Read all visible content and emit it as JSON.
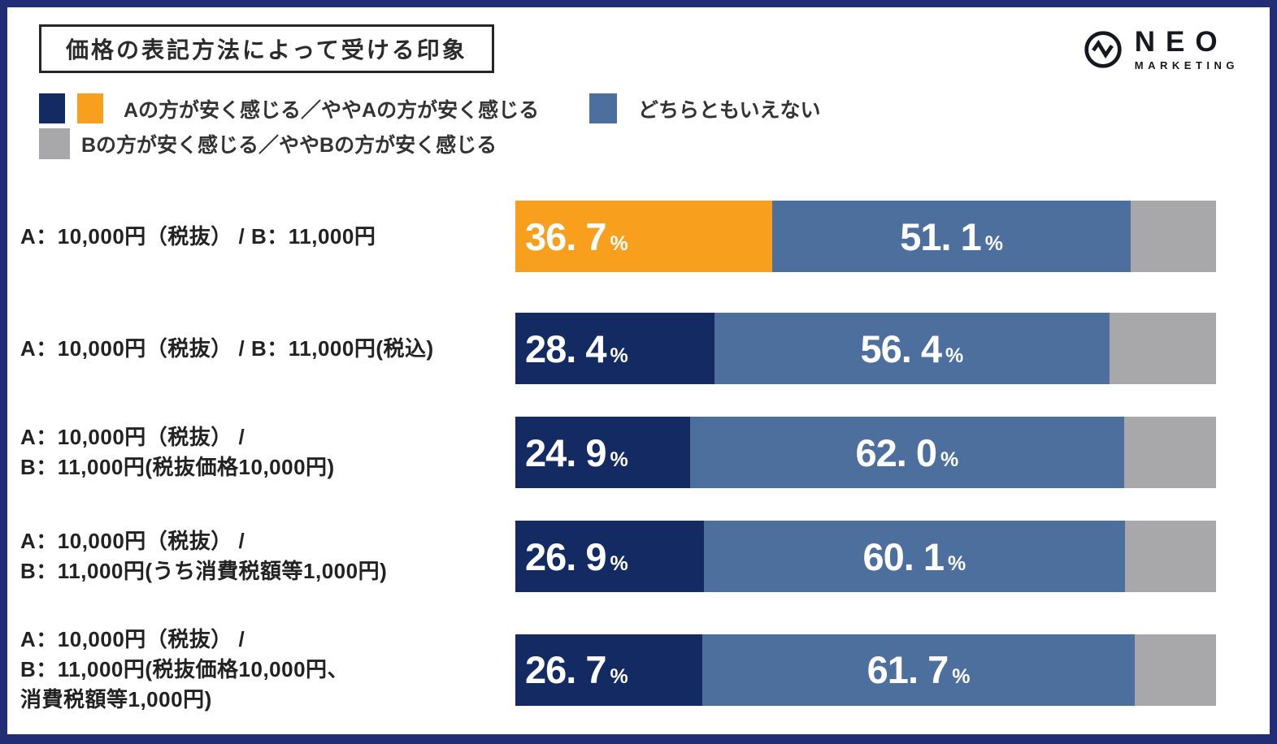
{
  "title": "価格の表記方法によって受ける印象",
  "brand": {
    "name": "NEO",
    "subname": "MARKETING",
    "logo_icon": "pulse-circle-icon"
  },
  "legend": {
    "a_label": "Aの方が安く感じる／ややAの方が安く感じる",
    "neutral_label": "どちらともいえない",
    "b_label": "Bの方が安く感じる／ややBの方が安く感じる"
  },
  "colors": {
    "navy": "#132a63",
    "orange": "#f8a01d",
    "steel": "#4d6f9e",
    "gray": "#a8a7a9",
    "frame": "#212d74",
    "text": "#222222"
  },
  "chart_data": {
    "type": "bar",
    "orientation": "horizontal",
    "stacked": true,
    "unit": "%",
    "xlim": [
      0,
      100
    ],
    "title": "価格の表記方法によって受ける印象",
    "legend_position": "top",
    "grid": false,
    "categories": [
      "A：10,000円（税抜） / B：11,000円",
      "A：10,000円（税抜） / B：11,000円(税込)",
      "A：10,000円（税抜） / B：11,000円(税抜価格10,000円)",
      "A：10,000円（税抜） / B：11,000円(うち消費税額等1,000円)",
      "A：10,000円（税抜） / B：11,000円(税抜価格10,000円、消費税額等1,000円)"
    ],
    "series": [
      {
        "name": "Aの方が安く感じる／ややAの方が安く感じる",
        "values": [
          36.7,
          28.4,
          24.9,
          26.9,
          26.7
        ],
        "segment_colors": [
          "orange",
          "navy",
          "navy",
          "navy",
          "navy"
        ],
        "value_labels_shown": true
      },
      {
        "name": "どちらともいえない",
        "values": [
          51.1,
          56.4,
          62.0,
          60.1,
          61.7
        ],
        "segment_colors": [
          "steel",
          "steel",
          "steel",
          "steel",
          "steel"
        ],
        "value_labels_shown": true
      },
      {
        "name": "Bの方が安く感じる／ややBの方が安く感じる",
        "values": [
          12.2,
          15.2,
          13.1,
          13.0,
          11.6
        ],
        "segment_colors": [
          "gray",
          "gray",
          "gray",
          "gray",
          "gray"
        ],
        "value_labels_shown": false
      }
    ]
  },
  "rows": [
    {
      "label_lines": [
        "A：10,000円（税抜） / B：11,000円"
      ],
      "segments": [
        {
          "key": "a",
          "color": "orange",
          "value": 36.7,
          "display": "36. 7",
          "unit": "%"
        },
        {
          "key": "neutral",
          "color": "steel",
          "value": 51.1,
          "display": "51. 1",
          "unit": "%"
        },
        {
          "key": "b",
          "color": "gray",
          "value": 12.2,
          "display": "",
          "unit": ""
        }
      ]
    },
    {
      "label_lines": [
        "A：10,000円（税抜） / B：11,000円(税込)"
      ],
      "segments": [
        {
          "key": "a",
          "color": "navy",
          "value": 28.4,
          "display": "28. 4",
          "unit": "%"
        },
        {
          "key": "neutral",
          "color": "steel",
          "value": 56.4,
          "display": "56. 4",
          "unit": "%"
        },
        {
          "key": "b",
          "color": "gray",
          "value": 15.2,
          "display": "",
          "unit": ""
        }
      ]
    },
    {
      "label_lines": [
        "A：10,000円（税抜） /",
        "B：11,000円(税抜価格10,000円)"
      ],
      "segments": [
        {
          "key": "a",
          "color": "navy",
          "value": 24.9,
          "display": "24. 9",
          "unit": "%"
        },
        {
          "key": "neutral",
          "color": "steel",
          "value": 62.0,
          "display": "62. 0",
          "unit": "%"
        },
        {
          "key": "b",
          "color": "gray",
          "value": 13.1,
          "display": "",
          "unit": ""
        }
      ]
    },
    {
      "label_lines": [
        "A：10,000円（税抜） /",
        "B：11,000円(うち消費税額等1,000円)"
      ],
      "segments": [
        {
          "key": "a",
          "color": "navy",
          "value": 26.9,
          "display": "26. 9",
          "unit": "%"
        },
        {
          "key": "neutral",
          "color": "steel",
          "value": 60.1,
          "display": "60. 1",
          "unit": "%"
        },
        {
          "key": "b",
          "color": "gray",
          "value": 13.0,
          "display": "",
          "unit": ""
        }
      ]
    },
    {
      "label_lines": [
        "A：10,000円（税抜） /",
        "B：11,000円(税抜価格10,000円、",
        "消費税額等1,000円)"
      ],
      "segments": [
        {
          "key": "a",
          "color": "navy",
          "value": 26.7,
          "display": "26. 7",
          "unit": "%"
        },
        {
          "key": "neutral",
          "color": "steel",
          "value": 61.7,
          "display": "61. 7",
          "unit": "%"
        },
        {
          "key": "b",
          "color": "gray",
          "value": 11.6,
          "display": "",
          "unit": ""
        }
      ]
    }
  ]
}
